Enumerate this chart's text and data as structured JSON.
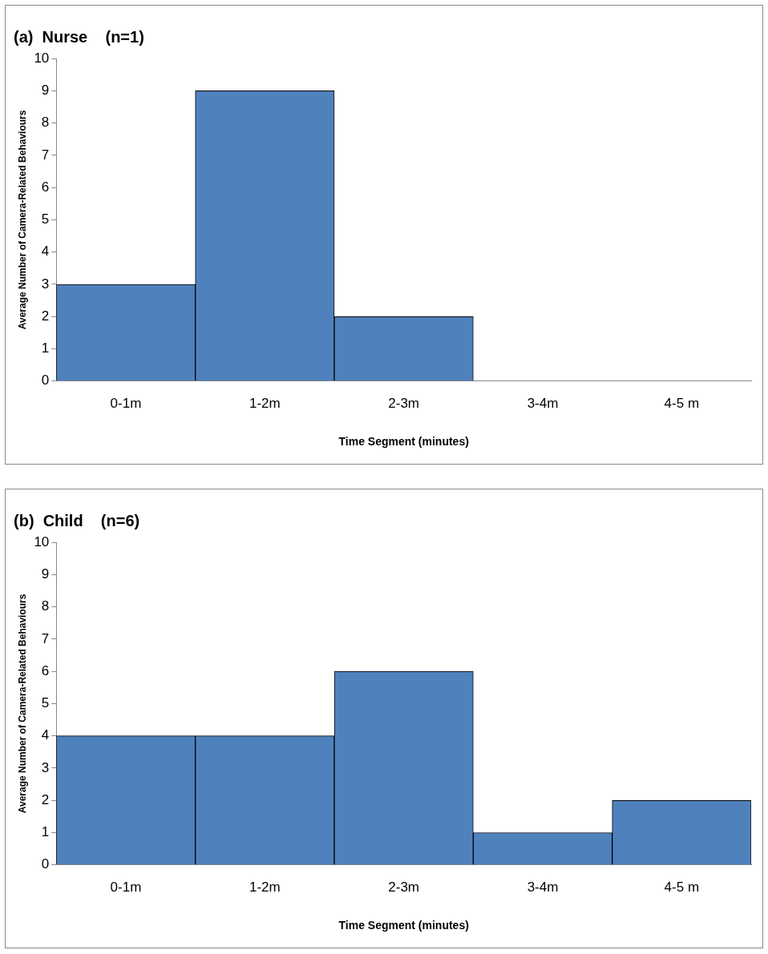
{
  "chart_data": [
    {
      "type": "bar",
      "title": "(a)  Nurse    (n=1)",
      "xlabel": "Time Segment (minutes)",
      "ylabel": "Average Number of Camera-Related Behaviours",
      "categories": [
        "0-1m",
        "1-2m",
        "2-3m",
        "3-4m",
        "4-5 m"
      ],
      "values": [
        3,
        9,
        2,
        0,
        0
      ],
      "color": "#4f81bd",
      "ylim": [
        0,
        10
      ],
      "yticks": [
        0,
        1,
        2,
        3,
        4,
        5,
        6,
        7,
        8,
        9,
        10
      ],
      "grid": false
    },
    {
      "type": "bar",
      "title": "(b)  Child    (n=6)",
      "xlabel": "Time Segment (minutes)",
      "ylabel": "Average Number of Camera-Related Behaviours",
      "categories": [
        "0-1m",
        "1-2m",
        "2-3m",
        "3-4m",
        "4-5 m"
      ],
      "values": [
        4,
        4,
        6,
        1,
        2
      ],
      "color": "#4f81bd",
      "ylim": [
        0,
        10
      ],
      "yticks": [
        0,
        1,
        2,
        3,
        4,
        5,
        6,
        7,
        8,
        9,
        10
      ],
      "grid": false
    }
  ]
}
